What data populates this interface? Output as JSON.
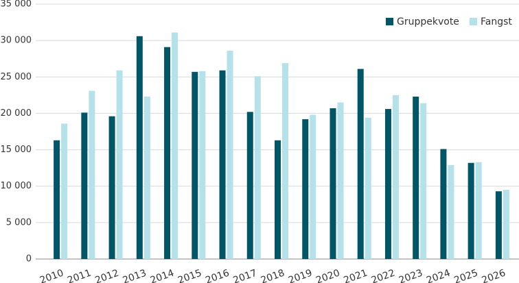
{
  "chart_data": {
    "type": "bar",
    "categories": [
      "2010",
      "2011",
      "2012",
      "2013",
      "2014",
      "2015",
      "2016",
      "2017",
      "2018",
      "2019",
      "2020",
      "2021",
      "2022",
      "2023",
      "2024",
      "2025",
      "2026"
    ],
    "series": [
      {
        "name": "Gruppekvote",
        "color": "#005667",
        "values": [
          16300,
          20100,
          19600,
          30600,
          29100,
          25700,
          25900,
          20200,
          16300,
          19200,
          20700,
          26100,
          20600,
          22300,
          15100,
          13200,
          9300
        ]
      },
      {
        "name": "Fangst",
        "color": "#b5e1eb",
        "values": [
          18600,
          23100,
          25900,
          22300,
          31100,
          25800,
          28600,
          25100,
          26900,
          19800,
          21500,
          19400,
          22500,
          21400,
          12900,
          13300,
          9500
        ]
      }
    ],
    "ylim": [
      0,
      35000
    ],
    "yticks": [
      0,
      {
        "value": 5000,
        "label": "5 000"
      },
      {
        "value": 10000,
        "label": "10 000"
      },
      {
        "value": 15000,
        "label": "15 000"
      },
      {
        "value": 20000,
        "label": "20 000"
      },
      {
        "value": 25000,
        "label": "25 000"
      },
      {
        "value": 30000,
        "label": "30 000"
      },
      {
        "value": 35000,
        "label": "35 000"
      }
    ],
    "grid": true,
    "legend": "top-right"
  }
}
